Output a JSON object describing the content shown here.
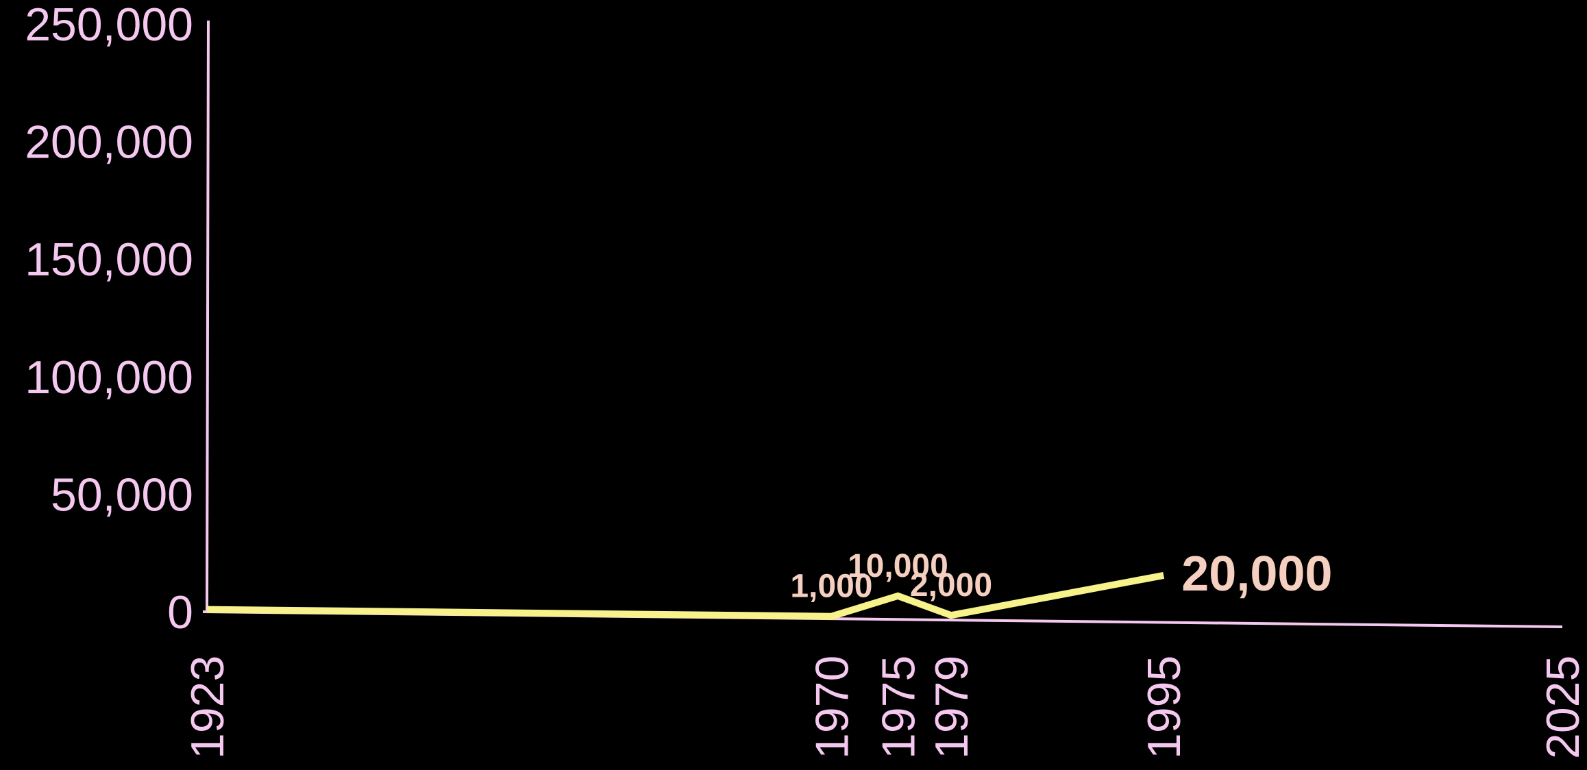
{
  "colors": {
    "background": "#000000",
    "axis": "#f5c8f0",
    "line": "#f7f28a",
    "data_label": "#f5cfc0"
  },
  "chart_data": {
    "type": "line",
    "title": "",
    "xlabel": "",
    "ylabel": "",
    "x": [
      1923,
      1970,
      1975,
      1979,
      1995
    ],
    "series": [
      {
        "values": [
          1000,
          1000,
          10000,
          2000,
          20000
        ]
      }
    ],
    "data_labels": [
      {
        "x": 1970,
        "y": 1000,
        "text": "1,000"
      },
      {
        "x": 1975,
        "y": 10000,
        "text": "10,000"
      },
      {
        "x": 1979,
        "y": 2000,
        "text": "2,000"
      },
      {
        "x": 1995,
        "y": 20000,
        "text": "20,000",
        "emphasis": true
      }
    ],
    "x_ticks": [
      {
        "value": 1923,
        "label": "1923"
      },
      {
        "value": 1970,
        "label": "1970"
      },
      {
        "value": 1975,
        "label": "1975"
      },
      {
        "value": 1979,
        "label": "1979"
      },
      {
        "value": 1995,
        "label": "1995"
      },
      {
        "value": 2025,
        "label": "2025"
      }
    ],
    "y_ticks": [
      {
        "value": 0,
        "label": "0"
      },
      {
        "value": 50000,
        "label": "50,000"
      },
      {
        "value": 100000,
        "label": "100,000"
      },
      {
        "value": 150000,
        "label": "150,000"
      },
      {
        "value": 200000,
        "label": "200,000"
      },
      {
        "value": 250000,
        "label": "250,000"
      }
    ],
    "xlim": [
      1923,
      2025
    ],
    "ylim": [
      0,
      250000
    ],
    "grid": false,
    "legend": "none"
  }
}
